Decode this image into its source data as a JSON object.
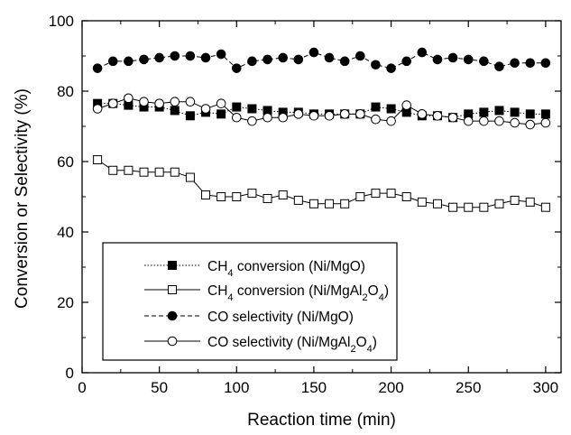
{
  "chart_data": {
    "type": "line",
    "xlabel": "Reaction time (min)",
    "ylabel": "Conversion or Selectivity (%)",
    "xlim": [
      0,
      310
    ],
    "ylim": [
      0,
      100
    ],
    "xticks": [
      0,
      50,
      100,
      150,
      200,
      250,
      300
    ],
    "yticks": [
      0,
      20,
      40,
      60,
      80,
      100
    ],
    "grid": false,
    "legend_position": "lower-left",
    "x": [
      10,
      20,
      30,
      40,
      50,
      60,
      70,
      80,
      90,
      100,
      110,
      120,
      130,
      140,
      150,
      160,
      170,
      180,
      190,
      200,
      210,
      220,
      230,
      240,
      250,
      260,
      270,
      280,
      290,
      300
    ],
    "series": [
      {
        "name": "CH4 conversion (Ni/MgO)",
        "legend": {
          "pre": "CH",
          "sub": "4",
          "post": " conversion (Ni/MgO)"
        },
        "marker": "square",
        "filled": true,
        "line": "dotted",
        "values": [
          76.5,
          76.5,
          76.0,
          75.5,
          75.5,
          74.5,
          73.0,
          74.0,
          73.5,
          75.5,
          75.0,
          74.5,
          74.0,
          74.0,
          73.5,
          73.5,
          73.5,
          73.5,
          75.5,
          75.0,
          74.0,
          73.0,
          73.0,
          72.5,
          73.5,
          74.0,
          74.5,
          74.0,
          73.5,
          73.5
        ]
      },
      {
        "name": "CH4 conversion (Ni/MgAl2O4)",
        "legend": {
          "pre": "CH",
          "sub": "4",
          "post": " conversion (Ni/MgAl",
          "sub2": "2",
          "post2": "O",
          "sub3": "4",
          "post3": ")"
        },
        "marker": "square",
        "filled": false,
        "line": "solid",
        "values": [
          60.5,
          57.5,
          57.5,
          57.0,
          57.0,
          57.0,
          55.5,
          50.5,
          50.0,
          50.0,
          51.0,
          49.5,
          50.5,
          49.0,
          48.0,
          48.0,
          48.0,
          50.0,
          51.0,
          51.0,
          50.0,
          48.5,
          48.0,
          47.0,
          47.0,
          47.0,
          48.0,
          49.0,
          48.5,
          47.0
        ]
      },
      {
        "name": "CO selectivity (Ni/MgO)",
        "legend": {
          "pre": "CO selectivity (Ni/MgO)"
        },
        "marker": "circle",
        "filled": true,
        "line": "dashed",
        "values": [
          86.5,
          88.5,
          88.5,
          89.0,
          89.5,
          90.0,
          90.0,
          89.5,
          90.5,
          86.5,
          88.5,
          89.0,
          89.5,
          89.0,
          91.0,
          89.5,
          88.5,
          90.0,
          87.5,
          86.5,
          88.5,
          91.0,
          89.0,
          89.5,
          89.0,
          88.5,
          87.0,
          88.0,
          88.0,
          88.0
        ]
      },
      {
        "name": "CO selectivity (Ni/MgAl2O4)",
        "legend": {
          "pre": "CO selectivity (Ni/MgAl",
          "sub": "2",
          "post": "O",
          "sub2": "4",
          "post2": ")"
        },
        "marker": "circle",
        "filled": false,
        "line": "solid",
        "values": [
          75.0,
          76.5,
          78.0,
          77.0,
          76.5,
          77.0,
          77.0,
          75.0,
          76.5,
          72.5,
          71.5,
          72.5,
          72.5,
          73.5,
          73.0,
          73.0,
          73.5,
          73.5,
          72.0,
          71.5,
          76.0,
          73.5,
          73.0,
          72.5,
          71.5,
          71.5,
          71.5,
          71.0,
          70.5,
          71.0
        ]
      }
    ]
  }
}
